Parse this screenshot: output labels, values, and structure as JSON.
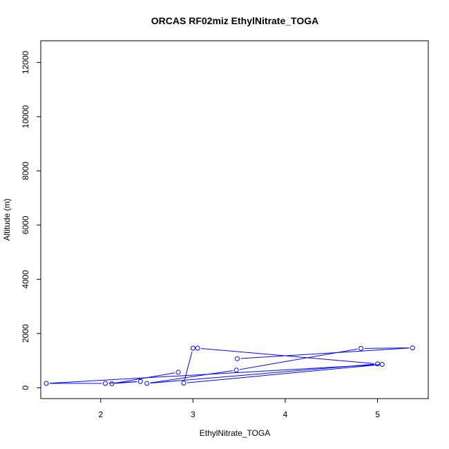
{
  "chart_data": {
    "type": "line",
    "title": "ORCAS RF02miz EthylNitrate_TOGA",
    "xlabel": "EthylNitrate_TOGA",
    "ylabel": "Altitude (m)",
    "xlim": [
      1.35,
      5.55
    ],
    "ylim": [
      -400,
      12800
    ],
    "xticks": [
      2,
      3,
      4,
      5
    ],
    "xtick_labels": [
      "2",
      "3",
      "4",
      "5"
    ],
    "yticks": [
      0,
      2000,
      4000,
      6000,
      8000,
      10000,
      12000
    ],
    "ytick_labels": [
      "0",
      "2000",
      "4000",
      "6000",
      "8000",
      "10000",
      "12000"
    ],
    "grid": false,
    "series": [
      {
        "color": "#0000ff",
        "marker": "open-circle",
        "x": [
          2.84,
          2.12,
          2.43,
          2.05,
          1.41,
          5.05,
          2.9,
          3.0,
          3.05,
          5.0,
          2.5,
          3.47,
          4.82,
          5.38,
          3.48
        ],
        "y": [
          570,
          150,
          230,
          160,
          160,
          860,
          170,
          1460,
          1460,
          880,
          160,
          650,
          1450,
          1470,
          1070
        ]
      }
    ]
  }
}
